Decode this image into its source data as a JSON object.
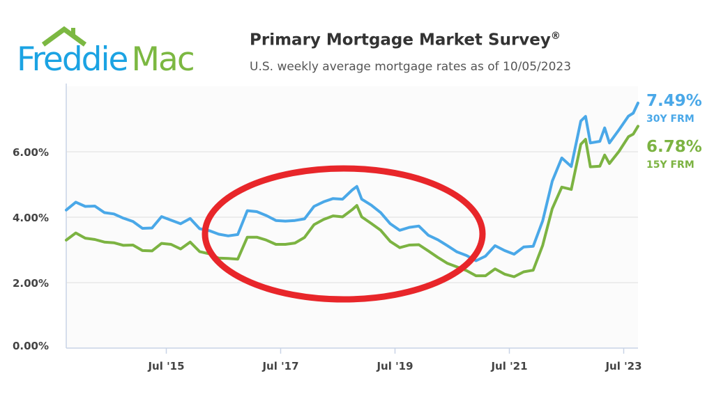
{
  "logo": {
    "text_part1": "Freddie",
    "text_part2": "Mac",
    "colors": {
      "blue": "#1ba3e3",
      "green": "#7cb842"
    }
  },
  "header": {
    "title": "Primary Mortgage Market Survey",
    "title_mark": "®",
    "subtitle": "U.S. weekly average mortgage rates as of 10/05/2023"
  },
  "legend": [
    {
      "value": "7.49%",
      "label": "30Y FRM",
      "color": "#4aa8e8"
    },
    {
      "value": "6.78%",
      "label": "15Y FRM",
      "color": "#7cb342"
    }
  ],
  "annotation": {
    "shape": "ellipse",
    "color": "#e8262a"
  },
  "chart_data": {
    "type": "line",
    "title": "Primary Mortgage Market Survey",
    "subtitle": "U.S. weekly average mortgage rates as of 10/05/2023",
    "xlim": [
      "2013-10",
      "2023-10"
    ],
    "ylim": [
      0,
      8
    ],
    "yticks": [
      0,
      2,
      4,
      6
    ],
    "ytick_labels": [
      "0.00%",
      "2.00%",
      "4.00%",
      "6.00%"
    ],
    "xticks": [
      "2015-07",
      "2017-07",
      "2019-07",
      "2021-07",
      "2023-07"
    ],
    "xtick_labels": [
      "Jul '15",
      "Jul '17",
      "Jul '19",
      "Jul '21",
      "Jul '23"
    ],
    "grid": true,
    "legend_position": "right",
    "x": [
      "2013-10",
      "2013-12",
      "2014-02",
      "2014-04",
      "2014-06",
      "2014-08",
      "2014-10",
      "2014-12",
      "2015-02",
      "2015-04",
      "2015-06",
      "2015-08",
      "2015-10",
      "2015-12",
      "2016-02",
      "2016-04",
      "2016-06",
      "2016-08",
      "2016-10",
      "2016-12",
      "2017-02",
      "2017-04",
      "2017-06",
      "2017-08",
      "2017-10",
      "2017-12",
      "2018-02",
      "2018-04",
      "2018-06",
      "2018-08",
      "2018-10",
      "2018-11",
      "2018-12",
      "2019-02",
      "2019-04",
      "2019-06",
      "2019-08",
      "2019-10",
      "2019-12",
      "2020-02",
      "2020-04",
      "2020-06",
      "2020-08",
      "2020-10",
      "2020-12",
      "2021-02",
      "2021-04",
      "2021-06",
      "2021-08",
      "2021-10",
      "2021-12",
      "2022-02",
      "2022-04",
      "2022-06",
      "2022-08",
      "2022-10",
      "2022-11",
      "2022-12",
      "2023-02",
      "2023-03",
      "2023-04",
      "2023-06",
      "2023-08",
      "2023-09",
      "2023-10"
    ],
    "series": [
      {
        "name": "30Y FRM",
        "color": "#4aa8e8",
        "values": [
          4.22,
          4.46,
          4.33,
          4.34,
          4.14,
          4.1,
          3.97,
          3.87,
          3.66,
          3.67,
          4.02,
          3.91,
          3.8,
          3.96,
          3.65,
          3.59,
          3.48,
          3.43,
          3.47,
          4.2,
          4.17,
          4.05,
          3.9,
          3.88,
          3.9,
          3.95,
          4.33,
          4.47,
          4.57,
          4.55,
          4.83,
          4.94,
          4.55,
          4.37,
          4.14,
          3.8,
          3.6,
          3.69,
          3.73,
          3.45,
          3.31,
          3.13,
          2.94,
          2.83,
          2.67,
          2.81,
          3.13,
          2.98,
          2.87,
          3.09,
          3.11,
          3.89,
          5.1,
          5.81,
          5.55,
          6.94,
          7.08,
          6.27,
          6.32,
          6.73,
          6.27,
          6.67,
          7.09,
          7.18,
          7.49
        ]
      },
      {
        "name": "15Y FRM",
        "color": "#7cb342",
        "values": [
          3.3,
          3.52,
          3.36,
          3.32,
          3.24,
          3.22,
          3.14,
          3.15,
          2.98,
          2.97,
          3.2,
          3.17,
          3.03,
          3.24,
          2.95,
          2.88,
          2.75,
          2.74,
          2.72,
          3.39,
          3.39,
          3.3,
          3.17,
          3.17,
          3.21,
          3.38,
          3.77,
          3.93,
          4.04,
          4.01,
          4.23,
          4.36,
          4.01,
          3.81,
          3.6,
          3.26,
          3.07,
          3.15,
          3.16,
          2.97,
          2.77,
          2.59,
          2.48,
          2.37,
          2.21,
          2.21,
          2.42,
          2.26,
          2.18,
          2.33,
          2.38,
          3.14,
          4.26,
          4.92,
          4.85,
          6.23,
          6.38,
          5.54,
          5.56,
          5.9,
          5.64,
          6.01,
          6.46,
          6.54,
          6.78
        ]
      }
    ]
  }
}
